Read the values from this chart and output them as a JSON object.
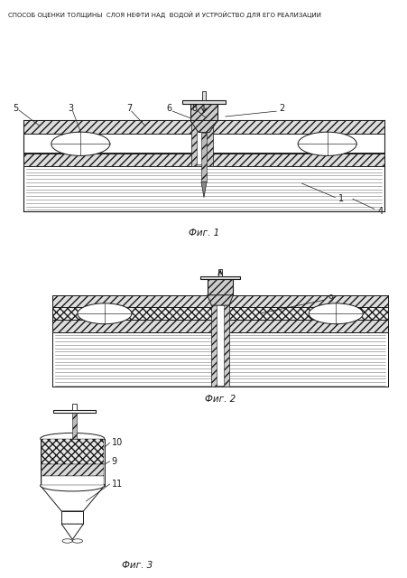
{
  "title": "СПОСОБ ОЦЕНКИ ТОЛЩИНЫ  СЛОЯ НЕФТИ НАД  ВОДОЙ И УСТРОЙСТВО ДЛЯ ЕГО РЕАЛИЗАЦИИ",
  "fig1_caption": "Фиг. 1",
  "fig2_caption": "Фиг. 2",
  "fig3_caption": "Фиг. 3",
  "line_color": "#1a1a1a",
  "title_fontsize": 5.0,
  "label_fontsize": 7,
  "caption_fontsize": 7.5
}
